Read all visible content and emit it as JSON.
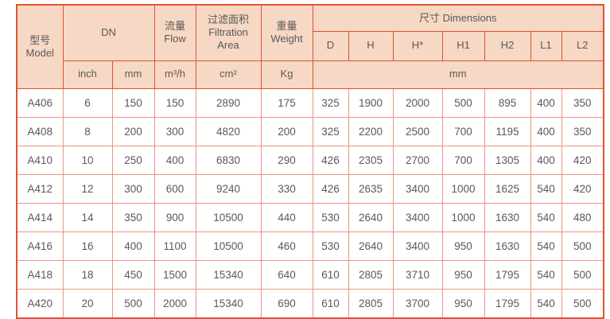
{
  "colors": {
    "header_bg": "#f6d8c4",
    "border_strong": "#e0512f",
    "border_light": "#f09383",
    "text": "#595959",
    "page_bg": "#ffffff"
  },
  "table": {
    "header": {
      "model_zh": "型号",
      "model_en": "Model",
      "dn": "DN",
      "flow_zh": "流量",
      "flow_en": "Flow",
      "filtration_zh": "过滤面积",
      "filtration_en1": "Filtration",
      "filtration_en2": "Area",
      "weight_zh": "重量",
      "weight_en": "Weight",
      "dimensions": "尺寸 Dimensions",
      "dim_cols": [
        "D",
        "H",
        "H*",
        "H1",
        "H2",
        "L1",
        "L2"
      ],
      "units": {
        "inch": "inch",
        "mm": "mm",
        "flow": "m³/h",
        "area": "cm²",
        "weight": "Kg",
        "dim": "mm"
      }
    },
    "rows": [
      {
        "model": "A406",
        "inch": "6",
        "mm": "150",
        "flow": "150",
        "area": "2890",
        "weight": "175",
        "dims": [
          "325",
          "1900",
          "2000",
          "500",
          "895",
          "400",
          "350"
        ]
      },
      {
        "model": "A408",
        "inch": "8",
        "mm": "200",
        "flow": "300",
        "area": "4820",
        "weight": "200",
        "dims": [
          "325",
          "2200",
          "2500",
          "700",
          "1195",
          "400",
          "350"
        ]
      },
      {
        "model": "A410",
        "inch": "10",
        "mm": "250",
        "flow": "400",
        "area": "6830",
        "weight": "290",
        "dims": [
          "426",
          "2305",
          "2700",
          "700",
          "1305",
          "400",
          "420"
        ]
      },
      {
        "model": "A412",
        "inch": "12",
        "mm": "300",
        "flow": "600",
        "area": "9240",
        "weight": "330",
        "dims": [
          "426",
          "2635",
          "3400",
          "1000",
          "1625",
          "540",
          "420"
        ]
      },
      {
        "model": "A414",
        "inch": "14",
        "mm": "350",
        "flow": "900",
        "area": "10500",
        "weight": "440",
        "dims": [
          "530",
          "2640",
          "3400",
          "1000",
          "1630",
          "540",
          "480"
        ]
      },
      {
        "model": "A416",
        "inch": "16",
        "mm": "400",
        "flow": "1100",
        "area": "10500",
        "weight": "460",
        "dims": [
          "530",
          "2640",
          "3400",
          "950",
          "1630",
          "540",
          "500"
        ]
      },
      {
        "model": "A418",
        "inch": "18",
        "mm": "450",
        "flow": "1500",
        "area": "15340",
        "weight": "640",
        "dims": [
          "610",
          "2805",
          "3710",
          "950",
          "1795",
          "540",
          "500"
        ]
      },
      {
        "model": "A420",
        "inch": "20",
        "mm": "500",
        "flow": "2000",
        "area": "15340",
        "weight": "690",
        "dims": [
          "610",
          "2805",
          "3700",
          "950",
          "1795",
          "540",
          "500"
        ]
      }
    ]
  }
}
